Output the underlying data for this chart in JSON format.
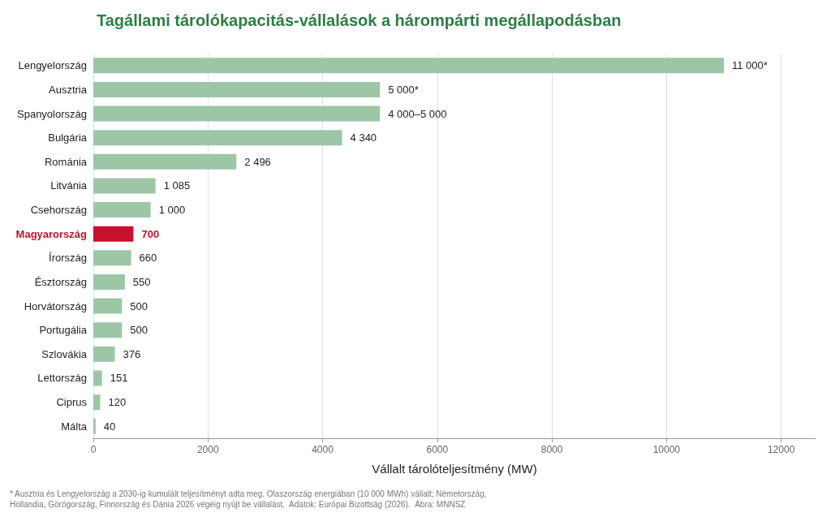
{
  "chart_data": {
    "type": "bar",
    "orientation": "horizontal",
    "title": "Tagállami tárolókapacitás-vállalások a hárompárti megállapodásban",
    "xlabel": "Vállalt tárolóteljesítmény (MW)",
    "categories": [
      "Lengyelország",
      "Ausztria",
      "Spanyolország",
      "Bulgária",
      "Románia",
      "Litvánia",
      "Csehország",
      "Magyarország",
      "Írország",
      "Észtország",
      "Horvátország",
      "Portugália",
      "Szlovákia",
      "Lettország",
      "Ciprus",
      "Málta"
    ],
    "values": [
      11000,
      5000,
      5000,
      4340,
      2496,
      1085,
      1000,
      700,
      660,
      550,
      500,
      500,
      376,
      151,
      120,
      40
    ],
    "value_labels": [
      "11 000*",
      "5 000*",
      null,
      "4 340",
      "2 496",
      "1 085",
      "1 000",
      "700",
      "660",
      "550",
      "500",
      "500",
      "376",
      "151",
      "120",
      "40"
    ],
    "colors": [
      "#9dc6a7",
      "#9dc6a7",
      "#9dc6a7",
      "#9dc6a7",
      "#9dc6a7",
      "#9dc6a7",
      "#9dc6a7",
      "#c8102e",
      "#9dc6a7",
      "#9dc6a7",
      "#9dc6a7",
      "#9dc6a7",
      "#9dc6a7",
      "#9dc6a7",
      "#9dc6a7",
      "#9dc6a7"
    ],
    "xlim": [
      0,
      12600
    ],
    "xticks": [
      0,
      2000,
      4000,
      6000,
      8000,
      10000,
      12000
    ],
    "grid": "x",
    "annotations": [
      {
        "text": "4 000–5 000",
        "x": 5000,
        "y": "Spanyolország"
      },
      "* Ausztria és Lengyelország a 2030-ig kumulált teljesítményt adta meg. Olaszország energiában (10 000 MWh) vállalt; Németország, Hollandia, Görögország, Finnország és Dánia 2026 végéig nyújt be vállalást.  Adatok: Európai Bizottság (2026).  Ábra: MNNSZ"
    ]
  }
}
